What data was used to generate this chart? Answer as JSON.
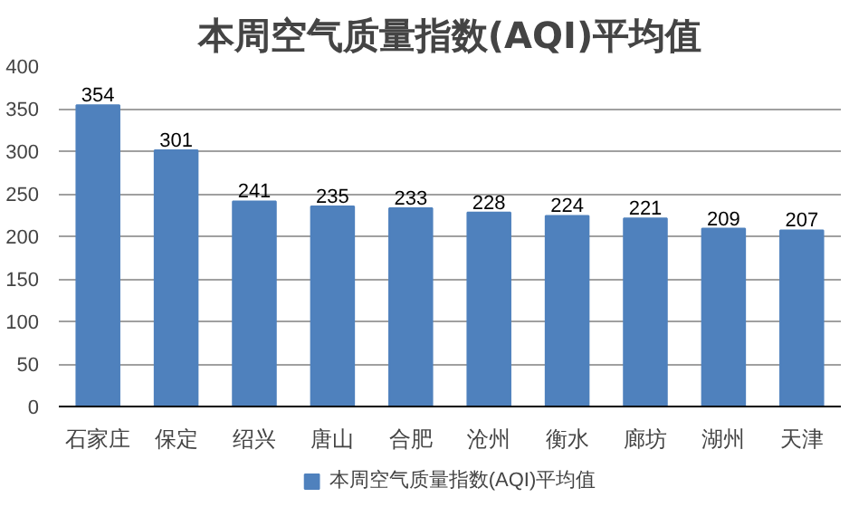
{
  "chart_data": {
    "type": "bar",
    "title": "本周空气质量指数(AQI)平均值",
    "categories": [
      "石家庄",
      "保定",
      "绍兴",
      "唐山",
      "合肥",
      "沧州",
      "衡水",
      "廊坊",
      "湖州",
      "天津"
    ],
    "series": [
      {
        "name": "本周空气质量指数(AQI)平均值",
        "color": "#4f81bd",
        "values": [
          354,
          301,
          241,
          235,
          233,
          228,
          224,
          221,
          209,
          207
        ]
      }
    ],
    "ylim": [
      0,
      400
    ],
    "yticks": [
      0,
      50,
      100,
      150,
      200,
      250,
      300,
      350,
      400
    ],
    "grid": "y",
    "legend": "bottom",
    "data_labels": true
  }
}
